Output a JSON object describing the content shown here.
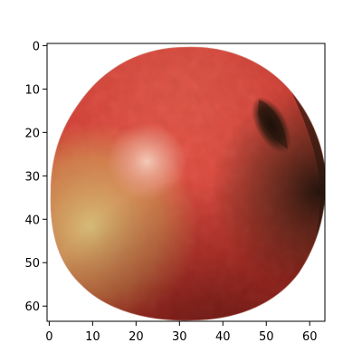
{
  "image": {
    "subject": "apple-icon",
    "resolution": [
      64,
      64
    ],
    "xlim": [
      -0.5,
      63.5
    ],
    "ylim": [
      63.5,
      -0.5
    ],
    "colors": {
      "apple_red": "#c8342c",
      "apple_highlight": "#efb7a3",
      "apple_yellow": "#d6c27a",
      "apple_shadow": "#2c1f12",
      "background": "#ffffff",
      "axis": "#000000"
    }
  },
  "axes": {
    "x": {
      "ticks": [
        0,
        10,
        20,
        30,
        40,
        50,
        60
      ],
      "tick_labels": [
        "0",
        "10",
        "20",
        "30",
        "40",
        "50",
        "60"
      ]
    },
    "y": {
      "ticks": [
        0,
        10,
        20,
        30,
        40,
        50,
        60
      ],
      "tick_labels": [
        "0",
        "10",
        "20",
        "30",
        "40",
        "50",
        "60"
      ]
    }
  }
}
